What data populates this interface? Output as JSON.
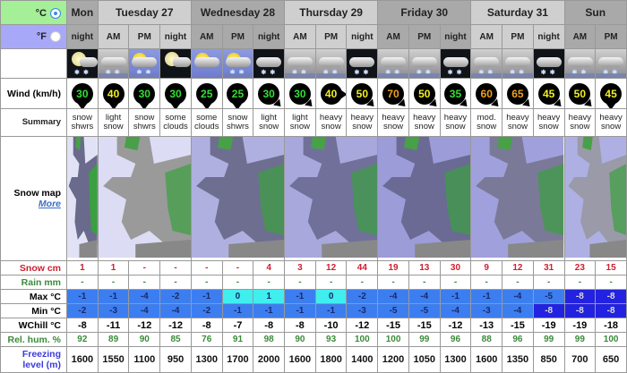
{
  "units": {
    "celsius": "°C",
    "fahrenheit": "°F",
    "selected": "celsius"
  },
  "days": [
    {
      "label": "Mon",
      "span": 1
    },
    {
      "label": "Tuesday 27",
      "span": 3
    },
    {
      "label": "Wednesday 28",
      "span": 3
    },
    {
      "label": "Thursday 29",
      "span": 3
    },
    {
      "label": "Friday 30",
      "span": 3
    },
    {
      "label": "Saturday 31",
      "span": 3
    },
    {
      "label": "Sun",
      "span": 2
    }
  ],
  "periods": [
    "night",
    "AM",
    "PM",
    "night",
    "AM",
    "PM",
    "night",
    "AM",
    "PM",
    "night",
    "AM",
    "PM",
    "night",
    "AM",
    "PM",
    "night",
    "AM",
    "PM"
  ],
  "icons": [
    "moon-cloud-snow",
    "cloud-snow",
    "sun-cloud-snow",
    "moon-cloud",
    "sun-cloud",
    "sun-cloud-snow",
    "cloud-snow-night",
    "cloud-snow",
    "cloud-snow",
    "cloud-snow-night",
    "cloud-snow",
    "cloud-snow",
    "cloud-snow-night",
    "cloud-snow",
    "cloud-snow",
    "cloud-snow-night",
    "cloud-snow",
    "cloud-snow"
  ],
  "labels": {
    "wind": "Wind (km/h)",
    "summary": "Summary",
    "snow_map": "Snow map",
    "more": "More",
    "snow": "Snow cm",
    "rain": "Rain mm",
    "max": "Max °C",
    "min": "Min °C",
    "wchill": "WChill °C",
    "hum": "Rel. hum. %",
    "freezing": "Freezing level (m)"
  },
  "wind": [
    "30",
    "40",
    "30",
    "30",
    "25",
    "25",
    "30",
    "30",
    "40",
    "50",
    "70",
    "50",
    "35",
    "60",
    "65",
    "45",
    "50",
    "45"
  ],
  "wind_dir": [
    "s",
    "s",
    "s",
    "s",
    "s",
    "s",
    "se",
    "se",
    "e",
    "se",
    "se",
    "se",
    "se",
    "se",
    "se",
    "se",
    "se",
    "s"
  ],
  "summary": [
    [
      "snow",
      "shwrs"
    ],
    [
      "light",
      "snow"
    ],
    [
      "snow",
      "shwrs"
    ],
    [
      "some",
      "clouds"
    ],
    [
      "some",
      "clouds"
    ],
    [
      "snow",
      "shwrs"
    ],
    [
      "light",
      "snow"
    ],
    [
      "light",
      "snow"
    ],
    [
      "heavy",
      "snow"
    ],
    [
      "heavy",
      "snow"
    ],
    [
      "heavy",
      "snow"
    ],
    [
      "heavy",
      "snow"
    ],
    [
      "heavy",
      "snow"
    ],
    [
      "mod.",
      "snow"
    ],
    [
      "heavy",
      "snow"
    ],
    [
      "heavy",
      "snow"
    ],
    [
      "heavy",
      "snow"
    ],
    [
      "heavy",
      "snow"
    ]
  ],
  "snow": [
    "1",
    "1",
    "-",
    "-",
    "-",
    "-",
    "4",
    "3",
    "12",
    "44",
    "19",
    "13",
    "30",
    "9",
    "12",
    "31",
    "23",
    "15"
  ],
  "rain": [
    "-",
    "-",
    "-",
    "-",
    "-",
    "-",
    "-",
    "-",
    "-",
    "-",
    "-",
    "-",
    "-",
    "-",
    "-",
    "-",
    "-",
    "-"
  ],
  "max": [
    "-1",
    "-1",
    "-4",
    "-2",
    "-1",
    "0",
    "1",
    "-1",
    "0",
    "-2",
    "-4",
    "-4",
    "-1",
    "-1",
    "-4",
    "-5",
    "-8",
    "-8"
  ],
  "min": [
    "-2",
    "-3",
    "-4",
    "-4",
    "-2",
    "-1",
    "-1",
    "-1",
    "-1",
    "-3",
    "-5",
    "-5",
    "-4",
    "-3",
    "-4",
    "-8",
    "-8",
    "-8"
  ],
  "wchill": [
    "-8",
    "-11",
    "-12",
    "-12",
    "-8",
    "-7",
    "-8",
    "-8",
    "-10",
    "-12",
    "-15",
    "-15",
    "-12",
    "-13",
    "-15",
    "-19",
    "-19",
    "-18"
  ],
  "hum": [
    "92",
    "89",
    "90",
    "85",
    "76",
    "91",
    "98",
    "90",
    "93",
    "100",
    "100",
    "99",
    "96",
    "88",
    "96",
    "99",
    "99",
    "100"
  ],
  "freezing": [
    "1600",
    "1550",
    "1100",
    "950",
    "1300",
    "1700",
    "2000",
    "1600",
    "1800",
    "1400",
    "1200",
    "1050",
    "1300",
    "1600",
    "1350",
    "850",
    "700",
    "650"
  ],
  "colors": {
    "snow": "#cc2030",
    "rain": "#3a8a3a",
    "hum": "#3a8a3a",
    "freezing": "#3a3adc",
    "temp_cold": "#3c7ef0",
    "temp_zero": "#40eeee",
    "temp_very_cold": "#2222e0"
  }
}
